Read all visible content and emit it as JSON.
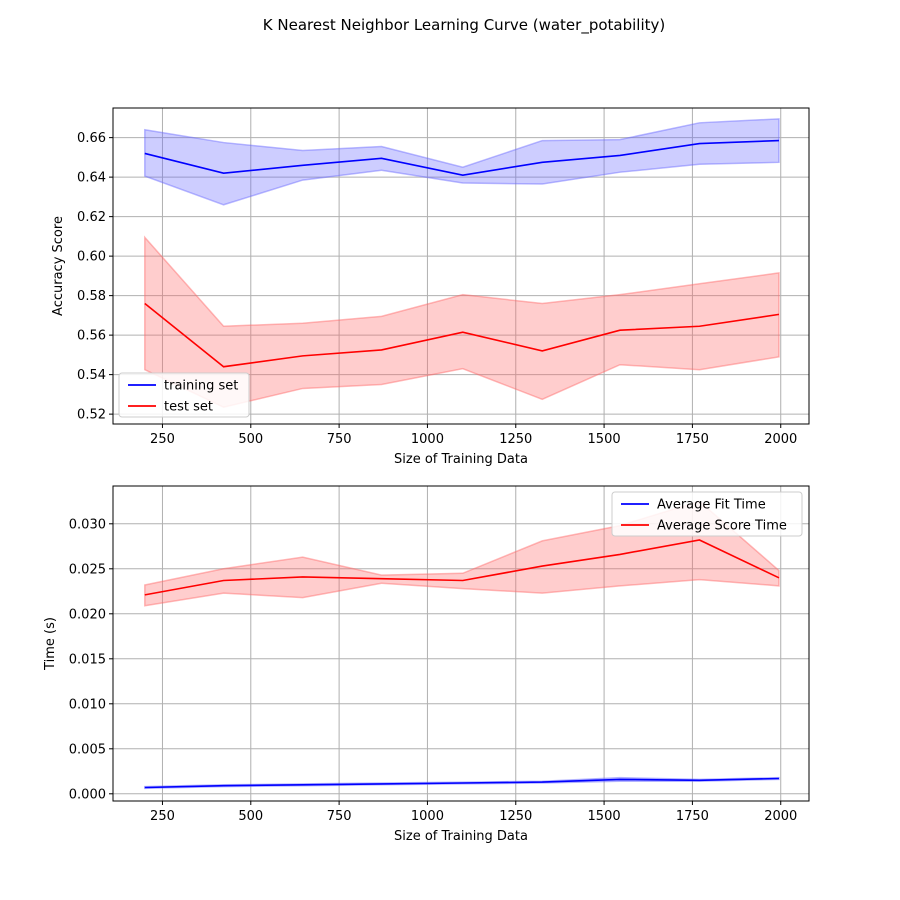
{
  "figure": {
    "title": "K Nearest Neighbor Learning Curve (water_potability)"
  },
  "chart_data": [
    {
      "type": "line",
      "xlabel": "Size of Training Data",
      "ylabel": "Accuracy Score",
      "xlim": [
        110,
        2080
      ],
      "ylim": [
        0.515,
        0.675
      ],
      "xticks": [
        250,
        500,
        750,
        1000,
        1250,
        1500,
        1750,
        2000
      ],
      "yticks": [
        0.52,
        0.54,
        0.56,
        0.58,
        0.6,
        0.62,
        0.64,
        0.66
      ],
      "ytick_decimals": 2,
      "grid": true,
      "legend_position": "lower-left",
      "x": [
        200,
        423,
        647,
        870,
        1100,
        1325,
        1545,
        1770,
        1995
      ],
      "series": [
        {
          "name": "training set",
          "color": "#0000ff",
          "band_color": "#6666ff",
          "values": [
            0.652,
            0.642,
            0.646,
            0.6495,
            0.641,
            0.6475,
            0.651,
            0.657,
            0.6585
          ],
          "upper": [
            0.664,
            0.6575,
            0.6535,
            0.6555,
            0.645,
            0.6585,
            0.659,
            0.6675,
            0.6695
          ],
          "lower": [
            0.6405,
            0.626,
            0.6385,
            0.6435,
            0.637,
            0.6365,
            0.6425,
            0.6465,
            0.6475
          ]
        },
        {
          "name": "test set",
          "color": "#ff0000",
          "band_color": "#ff6666",
          "values": [
            0.576,
            0.544,
            0.5495,
            0.5525,
            0.5615,
            0.552,
            0.5625,
            0.5645,
            0.5705
          ],
          "upper": [
            0.6095,
            0.5645,
            0.566,
            0.5695,
            0.5805,
            0.576,
            0.5805,
            0.586,
            0.5915
          ],
          "lower": [
            0.5425,
            0.5235,
            0.533,
            0.535,
            0.543,
            0.5275,
            0.545,
            0.5425,
            0.549
          ]
        }
      ]
    },
    {
      "type": "line",
      "xlabel": "Size of Training Data",
      "ylabel": "Time (s)",
      "xlim": [
        110,
        2080
      ],
      "ylim": [
        -0.0008,
        0.0342
      ],
      "xticks": [
        250,
        500,
        750,
        1000,
        1250,
        1500,
        1750,
        2000
      ],
      "yticks": [
        0.0,
        0.005,
        0.01,
        0.015,
        0.02,
        0.025,
        0.03
      ],
      "ytick_decimals": 3,
      "grid": true,
      "legend_position": "upper-right",
      "x": [
        200,
        423,
        647,
        870,
        1100,
        1325,
        1545,
        1770,
        1995
      ],
      "series": [
        {
          "name": "Average Fit Time",
          "color": "#0000ff",
          "band_color": "#6666ff",
          "values": [
            0.0007,
            0.0009,
            0.001,
            0.0011,
            0.0012,
            0.0013,
            0.0016,
            0.0015,
            0.0017
          ],
          "upper": [
            0.0008,
            0.001,
            0.0011,
            0.0012,
            0.0013,
            0.0014,
            0.0018,
            0.0016,
            0.0018
          ],
          "lower": [
            0.0006,
            0.0008,
            0.0009,
            0.001,
            0.0011,
            0.0012,
            0.0014,
            0.0014,
            0.0016
          ]
        },
        {
          "name": "Average Score Time",
          "color": "#ff0000",
          "band_color": "#ff6666",
          "values": [
            0.0221,
            0.0237,
            0.0241,
            0.0239,
            0.0237,
            0.0253,
            0.0266,
            0.0282,
            0.024
          ],
          "upper": [
            0.0232,
            0.025,
            0.0263,
            0.0243,
            0.0245,
            0.0281,
            0.0298,
            0.0325,
            0.0248
          ],
          "lower": [
            0.0209,
            0.0223,
            0.0218,
            0.0234,
            0.0228,
            0.0223,
            0.0231,
            0.0238,
            0.0231
          ]
        }
      ]
    }
  ]
}
